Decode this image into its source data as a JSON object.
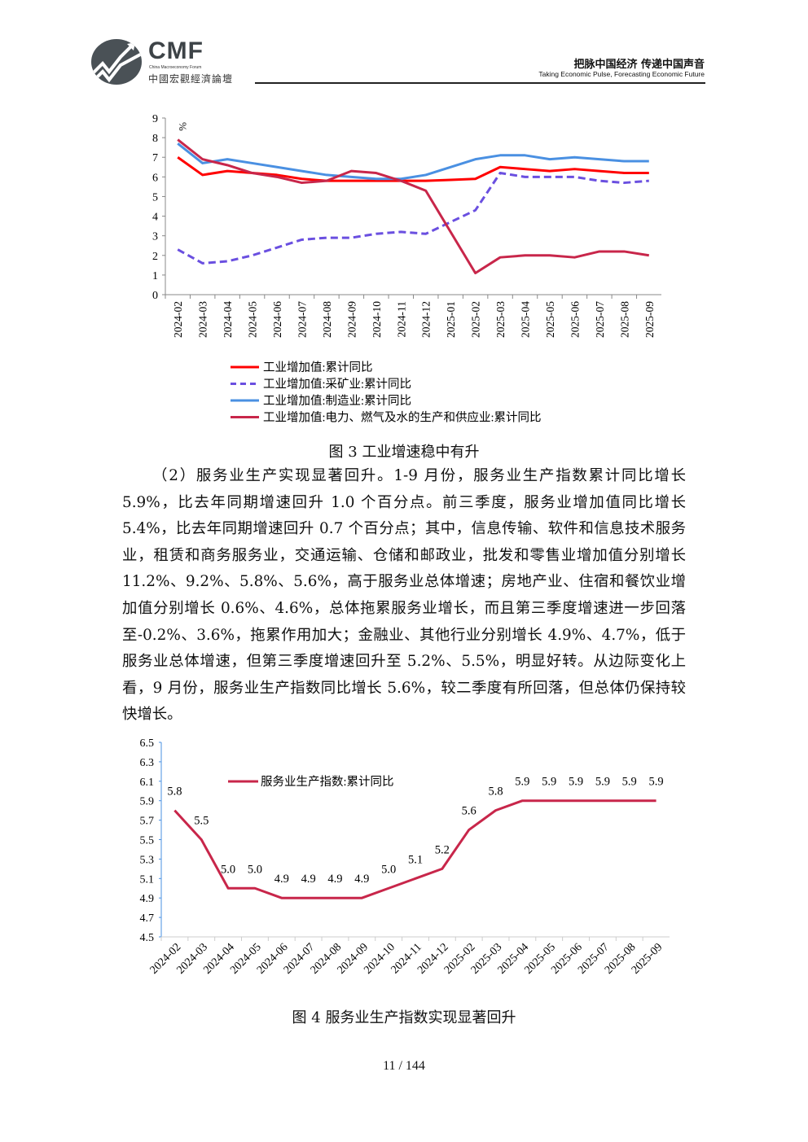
{
  "header": {
    "logo_name": "CMF",
    "logo_subtitle": "China Macroeconomy Forum",
    "logo_cn": "中國宏觀經濟論壇",
    "slogan_cn": "把脉中国经济  传递中国声音",
    "slogan_en": "Taking Economic Pulse, Forecasting Economic Future"
  },
  "figure3": {
    "caption": "图 3    工业增速稳中有升"
  },
  "figure4": {
    "caption": "图 4    服务业生产指数实现显著回升"
  },
  "body": {
    "paragraph": "（2）服务业生产实现显著回升。1-9 月份，服务业生产指数累计同比增长 5.9%，比去年同期增速回升 1.0 个百分点。前三季度，服务业增加值同比增长 5.4%，比去年同期增速回升 0.7 个百分点；其中，信息传输、软件和信息技术服务业，租赁和商务服务业，交通运输、仓储和邮政业，批发和零售业增加值分别增长 11.2%、9.2%、5.8%、5.6%，高于服务业总体增速；房地产业、住宿和餐饮业增加值分别增长 0.6%、4.6%，总体拖累服务业增长，而且第三季度增速进一步回落至-0.2%、3.6%，拖累作用加大；金融业、其他行业分别增长 4.9%、4.7%，低于服务业总体增速，但第三季度增速回升至 5.2%、5.5%，明显好转。从边际变化上看，9 月份，服务业生产指数同比增长 5.6%，较二季度有所回落，但总体仍保持较快增长。"
  },
  "footer": {
    "page": "11 / 144"
  },
  "chart_data": [
    {
      "type": "line",
      "title": "",
      "xlabel": "",
      "ylabel": "%",
      "ylim": [
        0,
        9
      ],
      "yticks": [
        "0",
        "1",
        "2",
        "3",
        "4",
        "5",
        "6",
        "7",
        "8",
        "9"
      ],
      "legend_position": "bottom",
      "categories": [
        "2024-02",
        "2024-03",
        "2024-04",
        "2024-05",
        "2024-06",
        "2024-07",
        "2024-08",
        "2024-09",
        "2024-10",
        "2024-11",
        "2024-12",
        "2025-01",
        "2025-02",
        "2025-03",
        "2025-04",
        "2025-05",
        "2025-06",
        "2025-07",
        "2025-08",
        "2025-09"
      ],
      "series": [
        {
          "name": "工业增加值:累计同比",
          "color": "#ff0000",
          "dash": false,
          "values": [
            7.0,
            6.1,
            6.3,
            6.2,
            6.1,
            5.9,
            5.8,
            5.8,
            5.8,
            5.8,
            5.8,
            5.85,
            5.9,
            6.5,
            6.4,
            6.3,
            6.4,
            6.3,
            6.2,
            6.2
          ]
        },
        {
          "name": "工业增加值:采矿业:累计同比",
          "color": "#6a4fe0",
          "dash": true,
          "values": [
            2.3,
            1.6,
            1.7,
            2.0,
            2.4,
            2.8,
            2.9,
            2.9,
            3.1,
            3.2,
            3.1,
            3.7,
            4.3,
            6.2,
            6.0,
            6.0,
            6.0,
            5.8,
            5.7,
            5.8
          ]
        },
        {
          "name": "工业增加值:制造业:累计同比",
          "color": "#4a90e2",
          "dash": false,
          "values": [
            7.7,
            6.7,
            6.9,
            6.7,
            6.5,
            6.3,
            6.1,
            6.0,
            5.9,
            5.9,
            6.1,
            6.5,
            6.9,
            7.1,
            7.1,
            6.9,
            7.0,
            6.9,
            6.8,
            6.8
          ]
        },
        {
          "name": "工业增加值:电力、燃气及水的生产和供应业:累计同比",
          "color": "#c8264a",
          "dash": false,
          "values": [
            7.9,
            6.9,
            6.6,
            6.2,
            6.0,
            5.7,
            5.8,
            6.3,
            6.2,
            5.8,
            5.3,
            3.2,
            1.1,
            1.9,
            2.0,
            2.0,
            1.9,
            2.2,
            2.2,
            2.0
          ]
        }
      ]
    },
    {
      "type": "line",
      "title": "",
      "xlabel": "",
      "ylabel": "",
      "ylim": [
        4.5,
        6.5
      ],
      "yticks": [
        "4.5",
        "4.7",
        "4.9",
        "5.1",
        "5.3",
        "5.5",
        "5.7",
        "5.9",
        "6.1",
        "6.3",
        "6.5"
      ],
      "legend_position": "top-center",
      "categories": [
        "2024-02",
        "2024-03",
        "2024-04",
        "2024-05",
        "2024-06",
        "2024-07",
        "2024-08",
        "2024-09",
        "2024-10",
        "2024-11",
        "2024-12",
        "2025-02",
        "2025-03",
        "2025-04",
        "2025-05",
        "2025-06",
        "2025-07",
        "2025-08",
        "2025-09"
      ],
      "series": [
        {
          "name": "服务业生产指数:累计同比",
          "color": "#c8264a",
          "dash": false,
          "values": [
            5.8,
            5.5,
            5.0,
            5.0,
            4.9,
            4.9,
            4.9,
            4.9,
            5.0,
            5.1,
            5.2,
            5.6,
            5.8,
            5.9,
            5.9,
            5.9,
            5.9,
            5.9,
            5.9
          ],
          "labels": [
            "5.8",
            "5.5",
            "5.0",
            "5.0",
            "4.9",
            "4.9",
            "4.9",
            "4.9",
            "5.0",
            "5.1",
            "5.2",
            "5.6",
            "5.8",
            "5.9",
            "5.9",
            "5.9",
            "5.9",
            "5.9",
            "5.9"
          ]
        }
      ]
    }
  ]
}
